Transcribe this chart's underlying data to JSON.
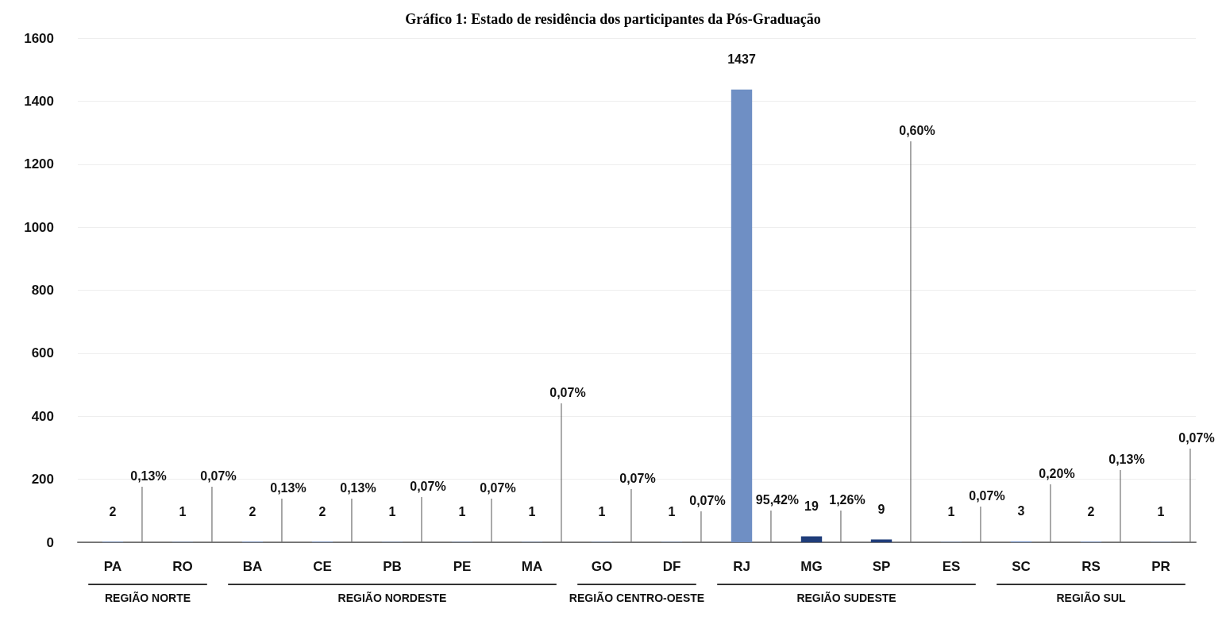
{
  "chart_data": {
    "type": "bar",
    "title": "Gráfico 1: Estado de residência dos participantes da Pós-Graduação",
    "categories": [
      "PA",
      "RO",
      "BA",
      "CE",
      "PB",
      "PE",
      "MA",
      "GO",
      "DF",
      "RJ",
      "MG",
      "SP",
      "ES",
      "SC",
      "RS",
      "PR"
    ],
    "values": [
      2,
      1,
      2,
      2,
      1,
      1,
      1,
      1,
      1,
      1437,
      19,
      9,
      1,
      3,
      2,
      1
    ],
    "colors": [
      "#6f8fc4",
      "#6f8fc4",
      "#6f8fc4",
      "#6f8fc4",
      "#6f8fc4",
      "#6f8fc4",
      "#6f8fc4",
      "#6f8fc4",
      "#6f8fc4",
      "#6f8fc4",
      "#1f3d7a",
      "#1f3d7a",
      "#6f8fc4",
      "#6f8fc4",
      "#6f8fc4",
      "#6f8fc4"
    ],
    "data_labels": true,
    "ylim": [
      0,
      1600
    ],
    "yticks": [
      0,
      200,
      400,
      600,
      800,
      1000,
      1200,
      1400,
      1600
    ],
    "grid": "y",
    "annotations": [
      "0,13%",
      "0,07%",
      "0,13%",
      "0,13%",
      "0,07%",
      "0,07%",
      "0,07%",
      "0,07%",
      "0,07%",
      "95,42%",
      "1,26%",
      "0,60%",
      "0,07%",
      "0,20%",
      "0,13%",
      "0,07%",
      "REGIÃO NORTE",
      "REGIÃO NORDESTE",
      "REGIÃO CENTRO-OESTE",
      "REGIÃO SUDESTE",
      "REGIÃO SUL"
    ]
  }
}
